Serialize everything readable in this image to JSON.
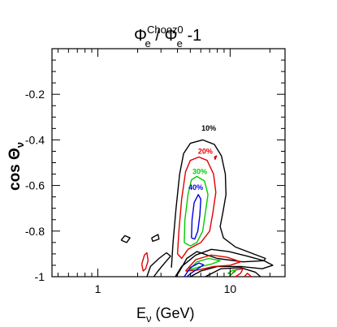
{
  "chart_data": {
    "type": "contour",
    "title": {
      "main": "Φ",
      "sup1": "Chooz",
      "sub1": "e",
      "mid": " / Φ",
      "sup2": "0",
      "sub2": "e",
      "tail": " -1"
    },
    "xlabel": {
      "main": "E",
      "sub": "ν",
      "tail": " (GeV)"
    },
    "ylabel": {
      "main": "cos Θ",
      "sub": "ν"
    },
    "x_scale": "log",
    "xlim": [
      0.45,
      26
    ],
    "ylim": [
      -1.0,
      0.0
    ],
    "x_ticks": [
      {
        "value": 1,
        "label": "1"
      },
      {
        "value": 10,
        "label": "10"
      }
    ],
    "y_ticks": [
      {
        "value": -0.2,
        "label": "-0.2"
      },
      {
        "value": -0.4,
        "label": "-0.4"
      },
      {
        "value": -0.6,
        "label": "-0.6"
      },
      {
        "value": -0.8,
        "label": "-0.8"
      },
      {
        "value": -1.0,
        "label": "-1"
      }
    ],
    "contours": [
      {
        "level_label": "10%",
        "color": "#000000",
        "label_pos": [
          6.9,
          -0.36
        ],
        "paths": [
          [
            [
              3.6,
              -0.96
            ],
            [
              3.7,
              -0.85
            ],
            [
              3.9,
              -0.7
            ],
            [
              4.15,
              -0.55
            ],
            [
              4.45,
              -0.46
            ],
            [
              5.0,
              -0.415
            ],
            [
              6.2,
              -0.4
            ],
            [
              7.6,
              -0.42
            ],
            [
              8.6,
              -0.47
            ],
            [
              9.2,
              -0.55
            ],
            [
              9.3,
              -0.64
            ],
            [
              8.8,
              -0.72
            ],
            [
              8.4,
              -0.78
            ],
            [
              8.9,
              -0.83
            ],
            [
              11.0,
              -0.87
            ],
            [
              15.0,
              -0.9
            ],
            [
              18.5,
              -0.92
            ],
            [
              18.0,
              -0.93
            ],
            [
              12.5,
              -0.935
            ],
            [
              8.0,
              -0.92
            ],
            [
              5.6,
              -0.89
            ],
            [
              4.7,
              -0.92
            ],
            [
              4.2,
              -0.97
            ],
            [
              3.9,
              -1.0
            ]
          ],
          [
            [
              2.55,
              -0.83
            ],
            [
              2.85,
              -0.815
            ],
            [
              2.9,
              -0.835
            ],
            [
              2.6,
              -0.845
            ],
            [
              2.55,
              -0.83
            ]
          ],
          [
            [
              2.35,
              -1.0
            ],
            [
              2.5,
              -0.955
            ],
            [
              2.9,
              -0.92
            ],
            [
              3.3,
              -0.895
            ],
            [
              3.55,
              -0.91
            ],
            [
              3.2,
              -0.94
            ],
            [
              2.85,
              -0.975
            ],
            [
              2.65,
              -1.0
            ]
          ],
          [
            [
              3.85,
              -1.0
            ],
            [
              4.3,
              -0.955
            ],
            [
              5.5,
              -0.905
            ],
            [
              7.2,
              -0.88
            ],
            [
              9.8,
              -0.89
            ],
            [
              13.5,
              -0.91
            ],
            [
              18.0,
              -0.93
            ],
            [
              21.0,
              -0.95
            ],
            [
              17.5,
              -0.965
            ],
            [
              12.0,
              -0.955
            ],
            [
              8.0,
              -0.955
            ],
            [
              6.0,
              -0.975
            ],
            [
              5.0,
              -1.0
            ]
          ],
          [
            [
              6.5,
              -1.0
            ],
            [
              8.5,
              -0.965
            ],
            [
              12.0,
              -0.96
            ],
            [
              15.5,
              -0.98
            ],
            [
              17.0,
              -1.0
            ]
          ],
          [
            [
              1.5,
              -0.84
            ],
            [
              1.6,
              -0.82
            ],
            [
              1.75,
              -0.83
            ],
            [
              1.65,
              -0.85
            ],
            [
              1.5,
              -0.84
            ]
          ]
        ]
      },
      {
        "level_label": "20%",
        "color": "#e00000",
        "label_pos": [
          6.5,
          -0.46
        ],
        "paths": [
          [
            [
              4.0,
              -0.9
            ],
            [
              4.1,
              -0.8
            ],
            [
              4.3,
              -0.66
            ],
            [
              4.6,
              -0.54
            ],
            [
              5.0,
              -0.49
            ],
            [
              5.8,
              -0.475
            ],
            [
              6.7,
              -0.49
            ],
            [
              7.5,
              -0.55
            ],
            [
              7.8,
              -0.63
            ],
            [
              7.4,
              -0.72
            ],
            [
              7.0,
              -0.8
            ],
            [
              6.0,
              -0.85
            ],
            [
              4.8,
              -0.88
            ],
            [
              4.3,
              -0.92
            ],
            [
              4.0,
              -0.9
            ]
          ],
          [
            [
              2.15,
              -0.945
            ],
            [
              2.25,
              -0.905
            ],
            [
              2.35,
              -0.895
            ],
            [
              2.4,
              -0.93
            ],
            [
              2.3,
              -0.965
            ],
            [
              2.2,
              -0.975
            ],
            [
              2.15,
              -0.945
            ]
          ],
          [
            [
              4.6,
              -0.975
            ],
            [
              5.5,
              -0.925
            ],
            [
              7.2,
              -0.905
            ],
            [
              9.5,
              -0.915
            ],
            [
              12.0,
              -0.935
            ],
            [
              10.0,
              -0.95
            ],
            [
              7.5,
              -0.955
            ],
            [
              5.8,
              -0.97
            ],
            [
              4.6,
              -0.975
            ]
          ],
          [
            [
              9.8,
              -1.0
            ],
            [
              11.0,
              -0.97
            ],
            [
              12.5,
              -0.965
            ],
            [
              12.0,
              -0.985
            ],
            [
              11.0,
              -1.0
            ]
          ],
          [
            [
              12.8,
              -1.0
            ],
            [
              13.5,
              -0.985
            ],
            [
              14.5,
              -1.0
            ]
          ],
          [
            [
              7.6,
              -0.475
            ],
            [
              7.9,
              -0.47
            ],
            [
              7.7,
              -0.485
            ],
            [
              7.6,
              -0.475
            ]
          ]
        ]
      },
      {
        "level_label": "30%",
        "color": "#00cc00",
        "label_pos": [
          5.9,
          -0.55
        ],
        "paths": [
          [
            [
              4.5,
              -0.85
            ],
            [
              4.55,
              -0.75
            ],
            [
              4.8,
              -0.64
            ],
            [
              5.1,
              -0.575
            ],
            [
              5.6,
              -0.56
            ],
            [
              6.4,
              -0.58
            ],
            [
              6.8,
              -0.64
            ],
            [
              6.5,
              -0.72
            ],
            [
              6.2,
              -0.8
            ],
            [
              5.6,
              -0.85
            ],
            [
              5.0,
              -0.865
            ],
            [
              4.5,
              -0.85
            ]
          ],
          [
            [
              4.9,
              -0.97
            ],
            [
              5.6,
              -0.935
            ],
            [
              6.9,
              -0.92
            ],
            [
              8.4,
              -0.93
            ],
            [
              7.2,
              -0.945
            ],
            [
              6.0,
              -0.955
            ],
            [
              4.9,
              -0.97
            ]
          ],
          [
            [
              9.6,
              -0.985
            ],
            [
              10.6,
              -0.97
            ],
            [
              11.0,
              -0.975
            ],
            [
              10.2,
              -0.99
            ],
            [
              9.6,
              -0.985
            ]
          ]
        ]
      },
      {
        "level_label": "40%",
        "color": "#0000e0",
        "label_pos": [
          5.5,
          -0.62
        ],
        "paths": [
          [
            [
              5.1,
              -0.83
            ],
            [
              5.15,
              -0.75
            ],
            [
              5.35,
              -0.675
            ],
            [
              5.75,
              -0.64
            ],
            [
              6.0,
              -0.66
            ],
            [
              5.9,
              -0.73
            ],
            [
              5.7,
              -0.8
            ],
            [
              5.4,
              -0.835
            ],
            [
              5.1,
              -0.83
            ]
          ],
          [
            [
              4.5,
              -1.0
            ],
            [
              5.0,
              -0.96
            ],
            [
              5.8,
              -0.94
            ],
            [
              6.3,
              -0.948
            ],
            [
              5.7,
              -0.965
            ],
            [
              5.2,
              -0.98
            ],
            [
              4.7,
              -1.0
            ]
          ]
        ]
      }
    ]
  }
}
